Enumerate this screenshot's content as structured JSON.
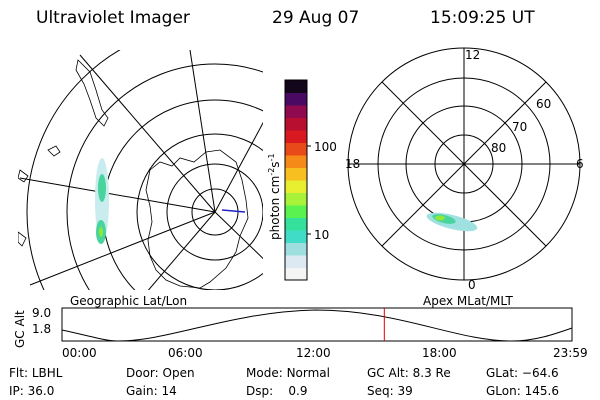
{
  "header": {
    "title": "Ultraviolet Imager",
    "date": "29 Aug 07",
    "time": "15:09:25 UT"
  },
  "geo_panel": {
    "label": "Geographic Lat/Lon"
  },
  "colorbar": {
    "unit_label": "photon cm-2s-1",
    "unit_main": "photon cm",
    "unit_exp1": "-2",
    "unit_s": "s",
    "unit_exp2": "-1",
    "tick_100": "100",
    "tick_10": "10",
    "colors": [
      "#f4f4f4",
      "#dde9f2",
      "#9fdede",
      "#40dcc8",
      "#34e09a",
      "#5af24e",
      "#a8f23a",
      "#e8ee30",
      "#f7c020",
      "#f58a18",
      "#e84a1a",
      "#d81a20",
      "#b80e30",
      "#900a50",
      "#4a0a64",
      "#14061a"
    ]
  },
  "polar_panel": {
    "label": "Apex MLat/MLT",
    "mlt_12": "12",
    "mlt_18": "18",
    "mlt_6": "6",
    "mlt_0": "0",
    "lat_60": "60",
    "lat_70": "70",
    "lat_80": "80"
  },
  "alt_plot": {
    "axis_label": "GC Alt",
    "y_hi": "9.0",
    "y_lo": "1.8",
    "x_ticks": [
      "00:00",
      "06:00",
      "12:00",
      "18:00",
      "23:59"
    ],
    "marker_time": "15:09:25",
    "marker_color": "#e00000"
  },
  "status": {
    "filter_label": "Flt:",
    "filter_value": "LBHL",
    "door_label": "Door:",
    "door_value": "Open",
    "mode_label": "Mode:",
    "mode_value": "Normal",
    "gcalt_label": "GC Alt:",
    "gcalt_value": "8.3 Re",
    "glat_label": "GLat:",
    "glat_value": "−64.6",
    "ip_label": "IP:",
    "ip_value": "36.0",
    "gain_label": "Gain:",
    "gain_value": "14",
    "dsp_label": "Dsp:",
    "dsp_value": "0.9",
    "seq_label": "Seq:",
    "seq_value": "39",
    "glon_label": "GLon:",
    "glon_value": "145.6"
  }
}
